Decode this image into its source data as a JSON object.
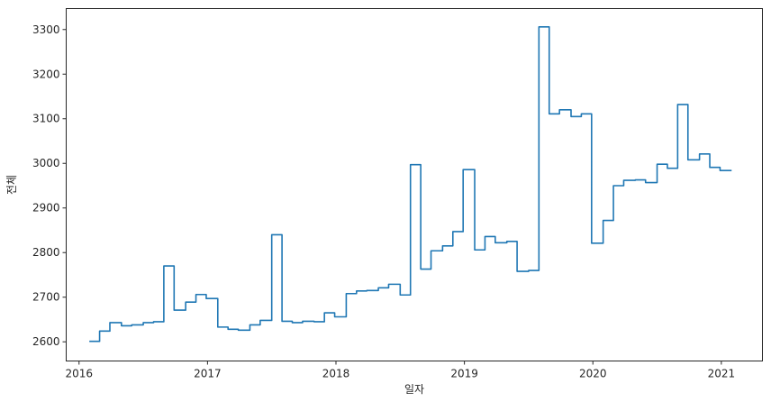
{
  "chart_data": {
    "type": "line",
    "xlabel": "일자",
    "ylabel": "전체",
    "xlim": [
      2015.9,
      2021.32
    ],
    "ylim": [
      2557,
      3347
    ],
    "x_ticks": [
      2016,
      2017,
      2018,
      2019,
      2020,
      2021
    ],
    "x_tick_labels": [
      "2016",
      "2017",
      "2018",
      "2019",
      "2020",
      "2021"
    ],
    "y_ticks": [
      2600,
      2700,
      2800,
      2900,
      3000,
      3100,
      3200,
      3300
    ],
    "y_tick_labels": [
      "2600",
      "2700",
      "2800",
      "2900",
      "3000",
      "3100",
      "3200",
      "3300"
    ],
    "grid": false,
    "line_color": "#1f77b4",
    "series": [
      {
        "x": [
          2016.08,
          2016.16,
          2016.16,
          2016.24,
          2016.24,
          2016.33,
          2016.33,
          2016.41,
          2016.41,
          2016.5,
          2016.5,
          2016.58,
          2016.58,
          2016.66,
          2016.66,
          2016.74,
          2016.74,
          2016.83,
          2016.83,
          2016.91,
          2016.91,
          2016.99,
          2016.99,
          2017.08,
          2017.08,
          2017.16,
          2017.16,
          2017.24,
          2017.24,
          2017.33,
          2017.33,
          2017.41,
          2017.41,
          2017.5,
          2017.5,
          2017.58,
          2017.58,
          2017.66,
          2017.66,
          2017.74,
          2017.74,
          2017.83,
          2017.83,
          2017.91,
          2017.91,
          2017.99,
          2017.99,
          2018.08,
          2018.08,
          2018.16,
          2018.16,
          2018.24,
          2018.24,
          2018.33,
          2018.33,
          2018.41,
          2018.41,
          2018.5,
          2018.5,
          2018.58,
          2018.58,
          2018.66,
          2018.66,
          2018.74,
          2018.74,
          2018.83,
          2018.83,
          2018.91,
          2018.91,
          2018.99,
          2018.99,
          2019.08,
          2019.08,
          2019.16,
          2019.16,
          2019.24,
          2019.24,
          2019.33,
          2019.33,
          2019.41,
          2019.41,
          2019.5,
          2019.5,
          2019.58,
          2019.58,
          2019.66,
          2019.66,
          2019.74,
          2019.74,
          2019.83,
          2019.83,
          2019.91,
          2019.91,
          2019.99,
          2019.99,
          2020.08,
          2020.08,
          2020.16,
          2020.16,
          2020.24,
          2020.24,
          2020.33,
          2020.33,
          2020.41,
          2020.41,
          2020.5,
          2020.5,
          2020.58,
          2020.58,
          2020.66,
          2020.66,
          2020.74,
          2020.74,
          2020.83,
          2020.83,
          2020.91,
          2020.91,
          2020.99,
          2020.99,
          2021.08
        ],
        "y": [
          2601,
          2601,
          2624,
          2624,
          2643,
          2643,
          2636,
          2636,
          2638,
          2638,
          2643,
          2643,
          2645,
          2645,
          2770,
          2770,
          2671,
          2671,
          2689,
          2689,
          2706,
          2706,
          2697,
          2697,
          2633,
          2633,
          2628,
          2628,
          2626,
          2626,
          2638,
          2638,
          2648,
          2648,
          2840,
          2840,
          2646,
          2646,
          2643,
          2643,
          2646,
          2646,
          2645,
          2645,
          2665,
          2665,
          2656,
          2656,
          2708,
          2708,
          2714,
          2714,
          2715,
          2715,
          2721,
          2721,
          2729,
          2729,
          2705,
          2705,
          2997,
          2997,
          2763,
          2763,
          2804,
          2804,
          2815,
          2815,
          2847,
          2847,
          2986,
          2986,
          2806,
          2806,
          2836,
          2836,
          2822,
          2822,
          2825,
          2825,
          2758,
          2758,
          2760,
          2760,
          3306,
          3306,
          3111,
          3111,
          3120,
          3120,
          3105,
          3105,
          3111,
          3111,
          2821,
          2821,
          2872,
          2872,
          2950,
          2950,
          2962,
          2962,
          2963,
          2963,
          2957,
          2957,
          2998,
          2998,
          2989,
          2989,
          3132,
          3132,
          3008,
          3008,
          3021,
          3021,
          2991,
          2991,
          2984,
          2984
        ]
      }
    ]
  }
}
